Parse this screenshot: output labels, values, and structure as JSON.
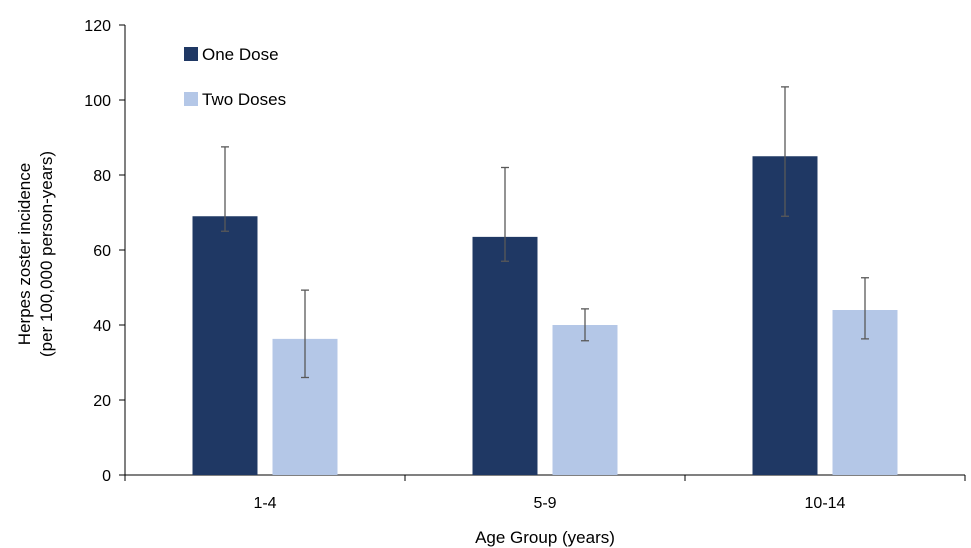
{
  "chart_data": {
    "type": "bar",
    "categories": [
      "1-4",
      "5-9",
      "10-14"
    ],
    "series": [
      {
        "name": "One Dose",
        "color": "#1f3864",
        "values": [
          69,
          63.5,
          85
        ],
        "error_low": [
          65,
          57,
          69
        ],
        "error_high": [
          87.5,
          82,
          103.5
        ]
      },
      {
        "name": "Two Doses",
        "color": "#b4c7e7",
        "values": [
          36.3,
          40,
          44
        ],
        "error_low": [
          26,
          35.8,
          36.3
        ],
        "error_high": [
          49.3,
          44.3,
          52.6
        ]
      }
    ],
    "title": "",
    "xlabel": "Age Group (years)",
    "ylabel": [
      "Herpes zoster incidence",
      "(per 100,000 person-years)"
    ],
    "ylim": [
      0,
      120
    ],
    "yticks": [
      0,
      20,
      40,
      60,
      80,
      100,
      120
    ],
    "grid": false,
    "legend_position": "top-left"
  }
}
